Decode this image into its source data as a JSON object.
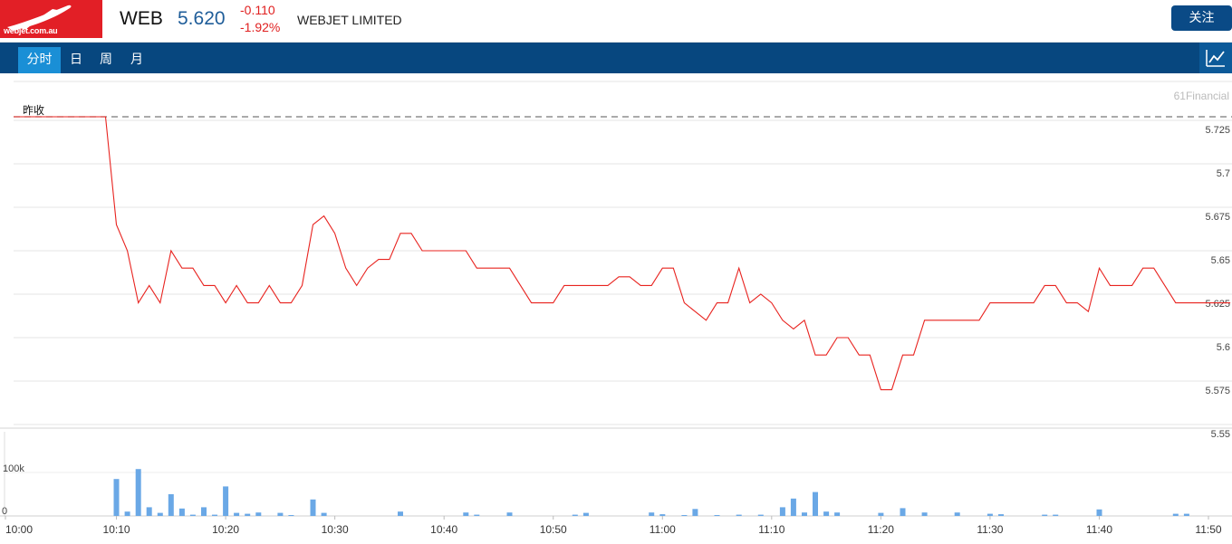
{
  "header": {
    "logo_text": "webjet.com.au",
    "ticker": "WEB",
    "price": "5.620",
    "change": "-0.110",
    "change_pct": "-1.92%",
    "company": "WEBJET LIMITED",
    "follow_label": "关注"
  },
  "tabs": [
    {
      "label": "分时",
      "active": true
    },
    {
      "label": "日",
      "active": false
    },
    {
      "label": "周",
      "active": false
    },
    {
      "label": "月",
      "active": false
    }
  ],
  "colors": {
    "line": "#e8231f",
    "volume": "#6aa8e6",
    "tabbar": "#07477f",
    "tab_active": "#1a8fd6"
  },
  "chart_data": {
    "type": "line",
    "watermark": "61Financial",
    "prev_close_label": "昨收",
    "prev_close": 5.73,
    "price_ylim": [
      5.55,
      5.73
    ],
    "price_ticks": [
      "5.725",
      "5.7",
      "5.675",
      "5.65",
      "5.625",
      "5.6",
      "5.575",
      "5.55"
    ],
    "x_range": [
      "10:00",
      "11:50"
    ],
    "x_ticks": [
      "10:00",
      "10:10",
      "10:20",
      "10:30",
      "10:40",
      "10:50",
      "11:00",
      "11:10",
      "11:20",
      "11:30",
      "11:40",
      "11:50"
    ],
    "price_series": [
      [
        "10:00",
        5.73
      ],
      [
        "10:08",
        5.73
      ],
      [
        "10:09",
        5.73
      ],
      [
        "10:10",
        5.665
      ],
      [
        "10:11",
        5.65
      ],
      [
        "10:12",
        5.62
      ],
      [
        "10:13",
        5.63
      ],
      [
        "10:14",
        5.62
      ],
      [
        "10:15",
        5.65
      ],
      [
        "10:16",
        5.64
      ],
      [
        "10:17",
        5.64
      ],
      [
        "10:18",
        5.63
      ],
      [
        "10:19",
        5.63
      ],
      [
        "10:20",
        5.62
      ],
      [
        "10:21",
        5.63
      ],
      [
        "10:22",
        5.62
      ],
      [
        "10:23",
        5.62
      ],
      [
        "10:24",
        5.63
      ],
      [
        "10:25",
        5.62
      ],
      [
        "10:26",
        5.62
      ],
      [
        "10:27",
        5.63
      ],
      [
        "10:28",
        5.665
      ],
      [
        "10:29",
        5.67
      ],
      [
        "10:30",
        5.66
      ],
      [
        "10:31",
        5.64
      ],
      [
        "10:32",
        5.63
      ],
      [
        "10:33",
        5.64
      ],
      [
        "10:34",
        5.645
      ],
      [
        "10:35",
        5.645
      ],
      [
        "10:36",
        5.66
      ],
      [
        "10:37",
        5.66
      ],
      [
        "10:38",
        5.65
      ],
      [
        "10:42",
        5.65
      ],
      [
        "10:43",
        5.64
      ],
      [
        "10:46",
        5.64
      ],
      [
        "10:47",
        5.63
      ],
      [
        "10:48",
        5.62
      ],
      [
        "10:50",
        5.62
      ],
      [
        "10:51",
        5.63
      ],
      [
        "10:55",
        5.63
      ],
      [
        "10:56",
        5.635
      ],
      [
        "10:57",
        5.635
      ],
      [
        "10:58",
        5.63
      ],
      [
        "10:59",
        5.63
      ],
      [
        "11:00",
        5.64
      ],
      [
        "11:01",
        5.64
      ],
      [
        "11:02",
        5.62
      ],
      [
        "11:03",
        5.615
      ],
      [
        "11:04",
        5.61
      ],
      [
        "11:05",
        5.62
      ],
      [
        "11:06",
        5.62
      ],
      [
        "11:07",
        5.64
      ],
      [
        "11:08",
        5.62
      ],
      [
        "11:09",
        5.625
      ],
      [
        "11:10",
        5.62
      ],
      [
        "11:11",
        5.61
      ],
      [
        "11:12",
        5.605
      ],
      [
        "11:13",
        5.61
      ],
      [
        "11:14",
        5.59
      ],
      [
        "11:15",
        5.59
      ],
      [
        "11:16",
        5.6
      ],
      [
        "11:17",
        5.6
      ],
      [
        "11:18",
        5.59
      ],
      [
        "11:19",
        5.59
      ],
      [
        "11:20",
        5.57
      ],
      [
        "11:21",
        5.57
      ],
      [
        "11:22",
        5.59
      ],
      [
        "11:23",
        5.59
      ],
      [
        "11:24",
        5.61
      ],
      [
        "11:29",
        5.61
      ],
      [
        "11:30",
        5.62
      ],
      [
        "11:34",
        5.62
      ],
      [
        "11:35",
        5.63
      ],
      [
        "11:36",
        5.63
      ],
      [
        "11:37",
        5.62
      ],
      [
        "11:38",
        5.62
      ],
      [
        "11:39",
        5.615
      ],
      [
        "11:40",
        5.64
      ],
      [
        "11:41",
        5.63
      ],
      [
        "11:43",
        5.63
      ],
      [
        "11:44",
        5.64
      ],
      [
        "11:45",
        5.64
      ],
      [
        "11:46",
        5.63
      ],
      [
        "11:47",
        5.62
      ],
      [
        "11:52",
        5.62
      ]
    ],
    "volume_ylim": [
      0,
      100000
    ],
    "volume_ticks": [
      "100k",
      "0"
    ],
    "volume_series": [
      [
        "10:10",
        85000
      ],
      [
        "10:11",
        10000
      ],
      [
        "10:12",
        108000
      ],
      [
        "10:13",
        20000
      ],
      [
        "10:14",
        7000
      ],
      [
        "10:15",
        50000
      ],
      [
        "10:16",
        17000
      ],
      [
        "10:17",
        3000
      ],
      [
        "10:18",
        20000
      ],
      [
        "10:19",
        3000
      ],
      [
        "10:20",
        68000
      ],
      [
        "10:21",
        7000
      ],
      [
        "10:22",
        5000
      ],
      [
        "10:23",
        8000
      ],
      [
        "10:25",
        7000
      ],
      [
        "10:26",
        2000
      ],
      [
        "10:28",
        38000
      ],
      [
        "10:29",
        7000
      ],
      [
        "10:36",
        10000
      ],
      [
        "10:42",
        8000
      ],
      [
        "10:43",
        3000
      ],
      [
        "10:46",
        8000
      ],
      [
        "10:52",
        3000
      ],
      [
        "10:53",
        7000
      ],
      [
        "10:59",
        8000
      ],
      [
        "11:00",
        4000
      ],
      [
        "11:02",
        2000
      ],
      [
        "11:03",
        16000
      ],
      [
        "11:05",
        2000
      ],
      [
        "11:07",
        3000
      ],
      [
        "11:09",
        3000
      ],
      [
        "11:11",
        20000
      ],
      [
        "11:12",
        40000
      ],
      [
        "11:13",
        8000
      ],
      [
        "11:14",
        55000
      ],
      [
        "11:15",
        10000
      ],
      [
        "11:16",
        8000
      ],
      [
        "11:20",
        7000
      ],
      [
        "11:22",
        18000
      ],
      [
        "11:24",
        8000
      ],
      [
        "11:27",
        8000
      ],
      [
        "11:30",
        5000
      ],
      [
        "11:31",
        4000
      ],
      [
        "11:35",
        3000
      ],
      [
        "11:36",
        3000
      ],
      [
        "11:40",
        15000
      ],
      [
        "11:47",
        5000
      ],
      [
        "11:48",
        5000
      ]
    ]
  }
}
